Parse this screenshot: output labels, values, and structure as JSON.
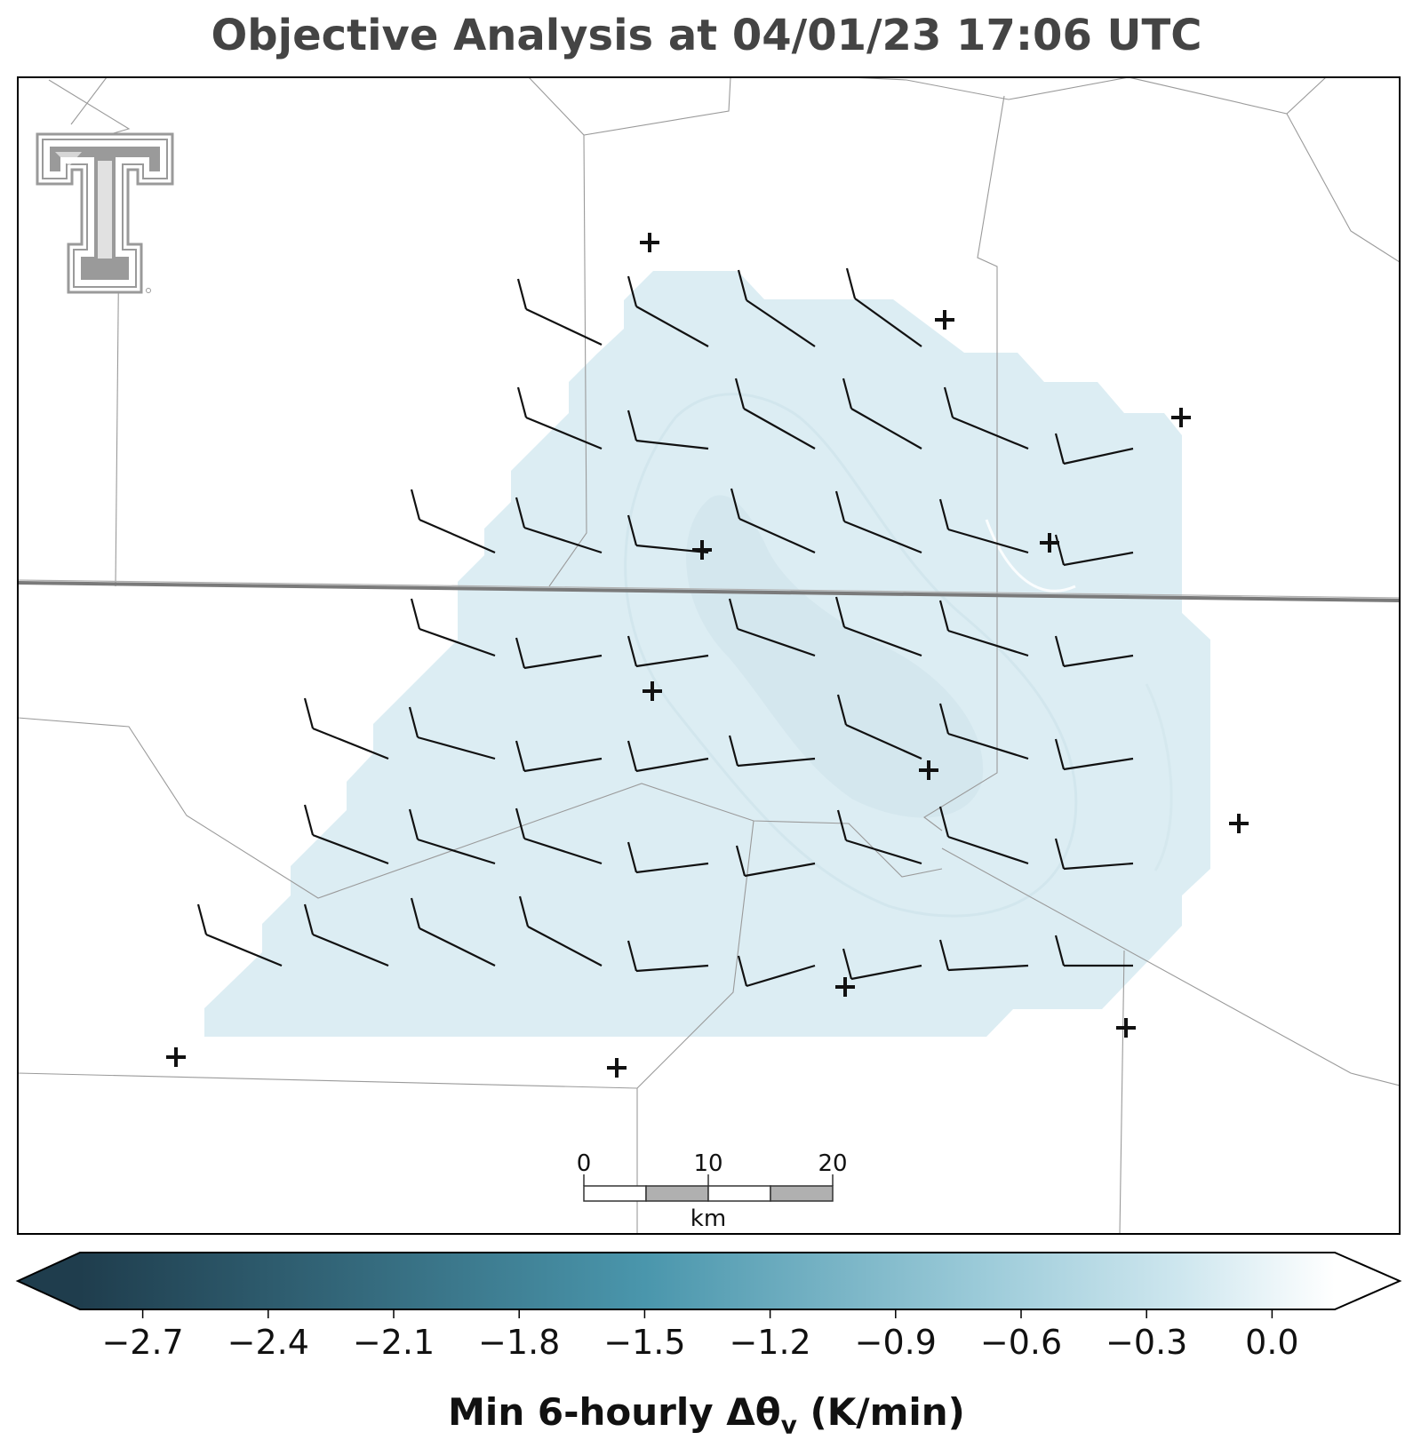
{
  "title": "Objective Analysis at 04/01/23 17:06 UTC",
  "colorbar": {
    "label_prefix": "Min 6-hourly Δθ",
    "label_sub": "v",
    "label_suffix": " (K/min)",
    "ticks": [
      "−2.7",
      "−2.4",
      "−2.1",
      "−1.8",
      "−1.5",
      "−1.2",
      "−0.9",
      "−0.6",
      "−0.3",
      "0.0"
    ],
    "min": -2.85,
    "max": 0.15,
    "color_dark": "#1f3d4d",
    "color_mid": "#4a96ac",
    "color_light": "#bfe0ea",
    "extend": "both"
  },
  "scale_bar": {
    "labels": [
      "0",
      "10",
      "20"
    ],
    "unit": "km"
  },
  "field": {
    "fill_color": "#dcedf3",
    "inner_fill_color": "#d3e7ee",
    "value_range_k_per_min": [
      -0.6,
      -0.45
    ]
  },
  "logo": {
    "name": "Texas Tech Double T",
    "color": "#9a9a9a"
  }
}
